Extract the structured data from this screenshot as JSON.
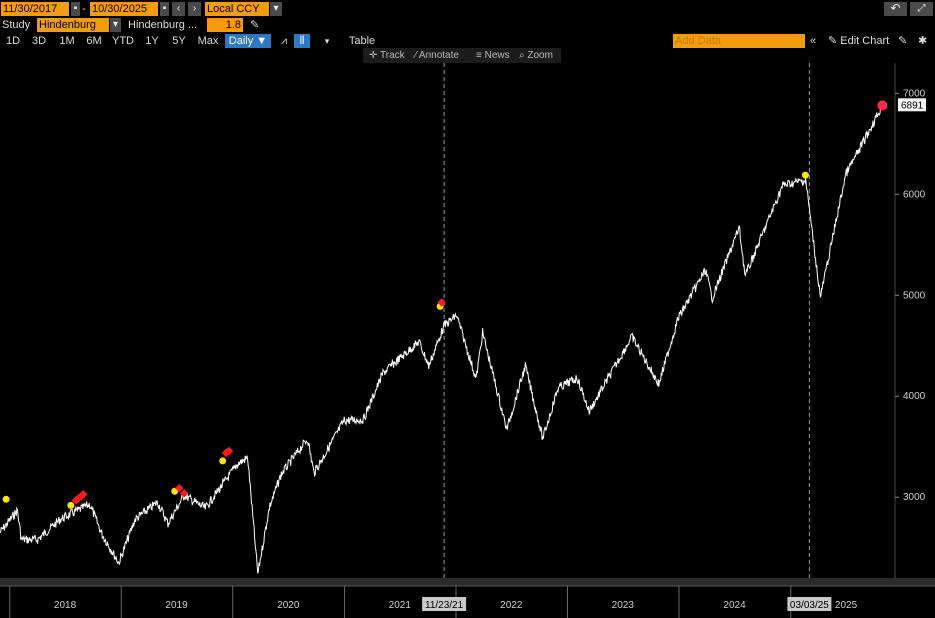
{
  "toolbar": {
    "start_date": "11/30/2017",
    "end_date": "10/30/2025",
    "currency": "Local CCY",
    "study_label": "Study",
    "study_value": "Hindenburg",
    "study_name": "Hindenburg ...",
    "study_param": "1.8",
    "add_data_placeholder": "Add Data",
    "edit_chart_label": "Edit Chart",
    "table_label": "Table",
    "interval": "Daily",
    "ranges": [
      "1D",
      "3D",
      "1M",
      "6M",
      "YTD",
      "1Y",
      "5Y",
      "Max"
    ],
    "chart_tools": {
      "track": "Track",
      "annotate": "Annotate",
      "news": "News",
      "zoom": "Zoom"
    }
  },
  "colors": {
    "accent": "#f39c12",
    "selected": "#2a78c8",
    "signal_yellow": "#ffe600",
    "signal_red": "#ff1a1a",
    "last_price_marker": "#ff2a4a",
    "line": "#ffffff"
  },
  "icons": [
    "calendar-icon",
    "undo-icon",
    "expand-icon",
    "settings-icon",
    "pencil-icon",
    "line-chart-icon",
    "candle-chart-icon"
  ],
  "chart_data": {
    "type": "line",
    "xlabel": "",
    "ylabel": "",
    "x_tick_labels": [
      "2018",
      "2019",
      "2020",
      "2021",
      "2022",
      "2023",
      "2024",
      "2025"
    ],
    "y_tick_labels": [
      "3000",
      "4000",
      "5000",
      "6000",
      "7000"
    ],
    "ylim": [
      2200,
      7300
    ],
    "xlim": [
      "2017-11-30",
      "2025-10-30"
    ],
    "grid": false,
    "last_value_label": "6891",
    "highlighted_dates": [
      "11/23/21",
      "03/03/25"
    ],
    "series": [
      {
        "x": [
          "2017-11-30",
          "2018-01-26",
          "2018-02-08",
          "2018-04-02",
          "2018-06-15",
          "2018-09-20",
          "2018-10-29",
          "2018-12-24",
          "2019-02-15",
          "2019-04-30",
          "2019-06-03",
          "2019-07-26",
          "2019-10-03",
          "2020-01-17",
          "2020-02-19",
          "2020-03-23",
          "2020-04-30",
          "2020-06-08",
          "2020-09-02",
          "2020-09-23",
          "2020-12-31",
          "2021-03-04",
          "2021-05-07",
          "2021-09-02",
          "2021-10-04",
          "2021-11-23",
          "2022-01-03",
          "2022-03-08",
          "2022-03-29",
          "2022-06-16",
          "2022-08-16",
          "2022-10-12",
          "2022-12-01",
          "2023-02-02",
          "2023-03-13",
          "2023-07-31",
          "2023-10-27",
          "2023-12-29",
          "2024-03-28",
          "2024-04-19",
          "2024-07-16",
          "2024-08-05",
          "2024-12-06",
          "2025-02-19",
          "2025-03-03",
          "2025-04-08",
          "2025-06-30",
          "2025-08-15",
          "2025-10-30"
        ],
        "y": [
          2650,
          2870,
          2580,
          2580,
          2780,
          2930,
          2640,
          2350,
          2780,
          2950,
          2740,
          3020,
          2890,
          3330,
          3390,
          2240,
          2900,
          3230,
          3580,
          3240,
          3760,
          3770,
          4230,
          4540,
          4300,
          4700,
          4800,
          4170,
          4630,
          3670,
          4300,
          3580,
          4080,
          4180,
          3850,
          4590,
          4120,
          4770,
          5250,
          4970,
          5670,
          5190,
          6090,
          6140,
          5850,
          4980,
          6200,
          6450,
          6891
        ]
      }
    ],
    "signals": [
      {
        "date": "2017-12-20",
        "value": 2920,
        "color": "yellow"
      },
      {
        "date": "2018-07-20",
        "value": 2860,
        "color": "yellow"
      },
      {
        "date": "2018-08-06",
        "value": 2910,
        "color": "red"
      },
      {
        "date": "2018-08-14",
        "value": 2930,
        "color": "red"
      },
      {
        "date": "2018-08-22",
        "value": 2950,
        "color": "red"
      },
      {
        "date": "2018-08-30",
        "value": 2970,
        "color": "red"
      },
      {
        "date": "2019-06-25",
        "value": 3000,
        "color": "yellow"
      },
      {
        "date": "2019-07-10",
        "value": 3030,
        "color": "red"
      },
      {
        "date": "2019-07-26",
        "value": 2980,
        "color": "red"
      },
      {
        "date": "2019-11-29",
        "value": 3300,
        "color": "yellow"
      },
      {
        "date": "2019-12-10",
        "value": 3380,
        "color": "red"
      },
      {
        "date": "2019-12-20",
        "value": 3400,
        "color": "red"
      },
      {
        "date": "2021-11-10",
        "value": 4830,
        "color": "yellow"
      },
      {
        "date": "2021-11-15",
        "value": 4870,
        "color": "red"
      },
      {
        "date": "2025-02-18",
        "value": 6130,
        "color": "yellow"
      },
      {
        "date": "2025-10-28",
        "value": 6890,
        "color": "last"
      }
    ]
  }
}
